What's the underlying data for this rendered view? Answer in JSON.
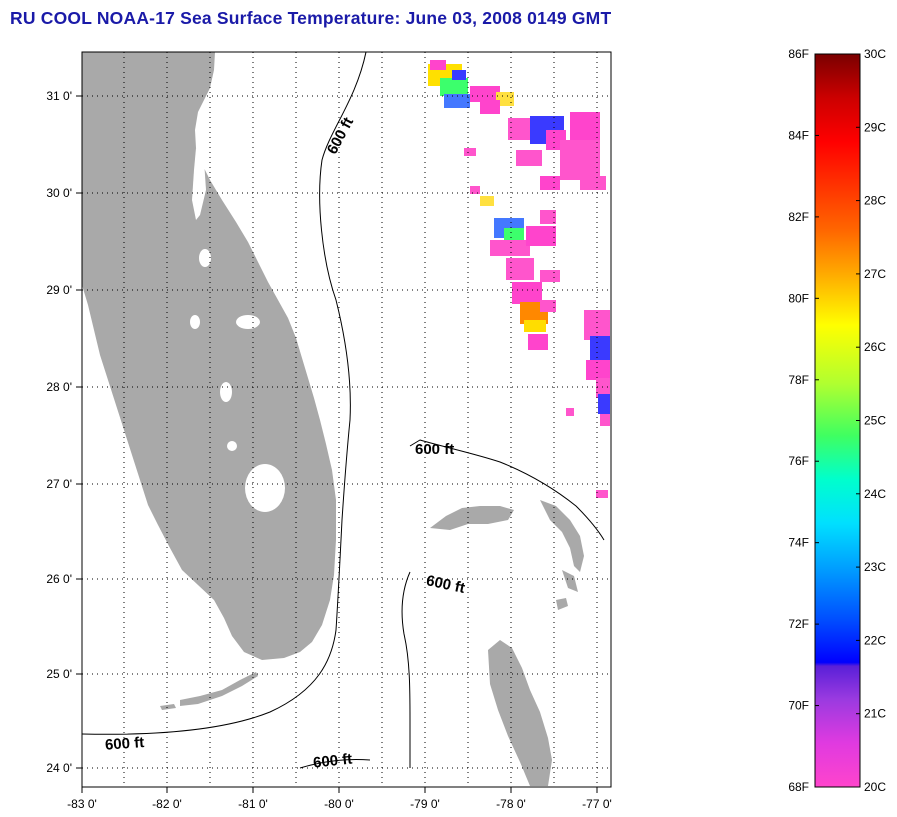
{
  "title": "RU COOL  NOAA-17  Sea Surface Temperature:  June 03, 2008 0149 GMT",
  "colors": {
    "title": "#1a1aa8",
    "land": "#a9a9a9",
    "grid": "#000000"
  },
  "map": {
    "lat_labels": [
      "31 0'",
      "30 0'",
      "29 0'",
      "28 0'",
      "27 0'",
      "26 0'",
      "25 0'",
      "24 0'"
    ],
    "lon_labels": [
      "-83 0'",
      "-82 0'",
      "-81 0'",
      "-80 0'",
      "-79 0'",
      "-78 0'",
      "-77 0'"
    ],
    "contour_label": "600 ft"
  },
  "colorbar": {
    "f_labels": [
      "86F",
      "84F",
      "82F",
      "80F",
      "78F",
      "76F",
      "74F",
      "72F",
      "70F",
      "68F"
    ],
    "c_labels": [
      "30C",
      "29C",
      "28C",
      "27C",
      "26C",
      "25C",
      "24C",
      "23C",
      "22C",
      "21C",
      "20C"
    ],
    "range_f": [
      68,
      86
    ],
    "range_c": [
      20,
      30
    ]
  }
}
